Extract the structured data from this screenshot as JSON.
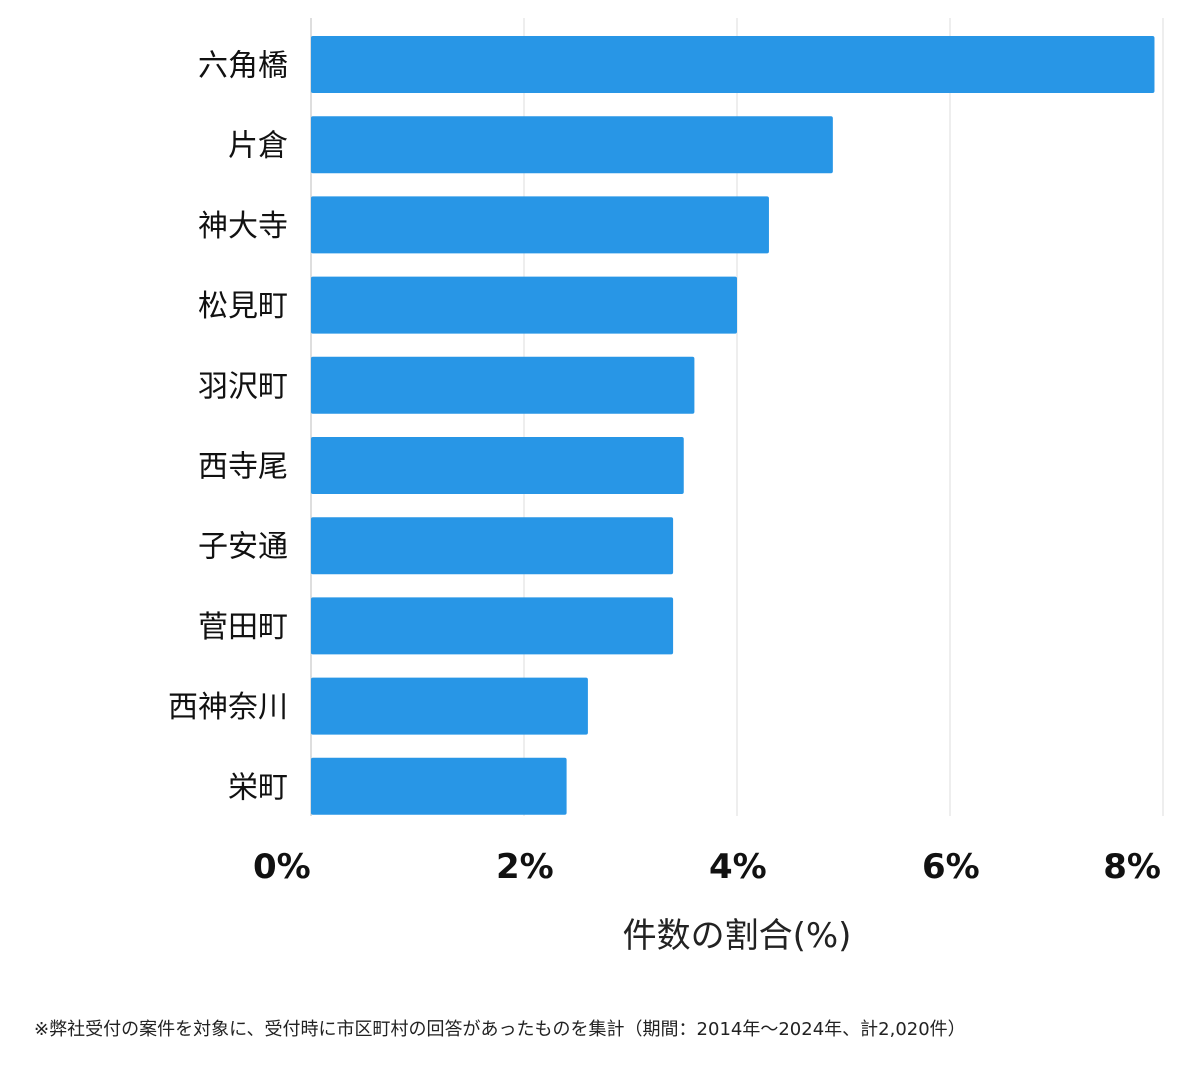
{
  "chart_data": {
    "type": "bar",
    "orientation": "horizontal",
    "categories": [
      "六角橋",
      "片倉",
      "神大寺",
      "松見町",
      "羽沢町",
      "西寺尾",
      "子安通",
      "菅田町",
      "西神奈川",
      "栄町"
    ],
    "values": [
      7.92,
      4.9,
      4.3,
      4.0,
      3.6,
      3.5,
      3.4,
      3.4,
      2.6,
      2.4
    ],
    "xlim": [
      0,
      8
    ],
    "xticks": [
      0,
      2,
      4,
      6,
      8
    ],
    "tick_suffix": "%",
    "xlabel": "件数の割合(%)",
    "grid": true,
    "bar_color": "#2896e6"
  },
  "footnote": "※弊社受付の案件を対象に、受付時に市区町村の回答があったものを集計（期間：2014年～2024年、計2,020件）"
}
